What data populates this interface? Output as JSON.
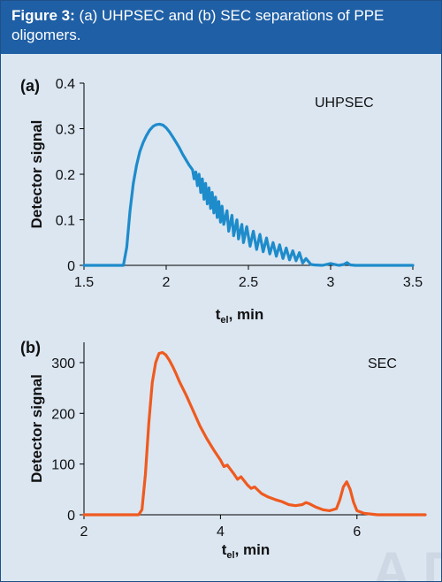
{
  "header": {
    "figure_label": "Figure 3:",
    "caption": "(a) UHPSEC and (b) SEC separations of PPE oligomers."
  },
  "colors": {
    "header_bg": "#1f5fa5",
    "panel_bg": "#dbe6f1",
    "series_a": "#1e8bcb",
    "series_b": "#ef5a1f"
  },
  "chart_data": [
    {
      "type": "line",
      "panel_label": "(a)",
      "series_name": "UHPSEC",
      "xlabel_main": "t",
      "xlabel_sub": "el",
      "xlabel_rest": ", min",
      "ylabel": "Detector signal",
      "xlim": [
        1.5,
        3.5
      ],
      "ylim": [
        0,
        0.4
      ],
      "xticks": [
        1.5,
        2,
        2.5,
        3,
        3.5
      ],
      "xtick_labels": [
        "1.5",
        "2",
        "2.5",
        "3",
        "3.5"
      ],
      "yticks": [
        0,
        0.1,
        0.2,
        0.3,
        0.4
      ],
      "ytick_labels": [
        "0",
        "0.1",
        "0.2",
        "0.3",
        "0.4"
      ],
      "x": [
        1.5,
        1.7,
        1.74,
        1.76,
        1.78,
        1.8,
        1.82,
        1.84,
        1.86,
        1.88,
        1.9,
        1.92,
        1.94,
        1.96,
        1.98,
        2.0,
        2.02,
        2.04,
        2.06,
        2.08,
        2.1,
        2.12,
        2.14,
        2.16,
        2.17,
        2.18,
        2.19,
        2.2,
        2.21,
        2.22,
        2.23,
        2.24,
        2.25,
        2.26,
        2.27,
        2.28,
        2.29,
        2.3,
        2.31,
        2.32,
        2.33,
        2.34,
        2.35,
        2.37,
        2.38,
        2.4,
        2.41,
        2.43,
        2.44,
        2.46,
        2.47,
        2.49,
        2.51,
        2.53,
        2.55,
        2.57,
        2.59,
        2.61,
        2.63,
        2.65,
        2.67,
        2.69,
        2.71,
        2.73,
        2.75,
        2.77,
        2.79,
        2.81,
        2.83,
        2.85,
        2.88,
        2.9,
        2.95,
        3.0,
        3.05,
        3.08,
        3.1,
        3.12,
        3.15,
        3.2,
        3.5
      ],
      "y": [
        0.0,
        0.0,
        0.0,
        0.04,
        0.12,
        0.18,
        0.22,
        0.25,
        0.27,
        0.285,
        0.297,
        0.305,
        0.309,
        0.31,
        0.308,
        0.302,
        0.293,
        0.282,
        0.27,
        0.258,
        0.244,
        0.232,
        0.22,
        0.21,
        0.19,
        0.205,
        0.175,
        0.2,
        0.16,
        0.19,
        0.145,
        0.18,
        0.135,
        0.17,
        0.125,
        0.16,
        0.115,
        0.15,
        0.105,
        0.14,
        0.095,
        0.13,
        0.09,
        0.12,
        0.075,
        0.11,
        0.065,
        0.1,
        0.058,
        0.09,
        0.05,
        0.085,
        0.042,
        0.075,
        0.035,
        0.068,
        0.03,
        0.06,
        0.025,
        0.05,
        0.02,
        0.045,
        0.015,
        0.038,
        0.012,
        0.032,
        0.01,
        0.028,
        0.005,
        0.015,
        0.002,
        0.001,
        0.0,
        0.004,
        0.0,
        0.002,
        0.006,
        0.001,
        0.0,
        0.0,
        0.0
      ]
    },
    {
      "type": "line",
      "panel_label": "(b)",
      "series_name": "SEC",
      "xlabel_main": "t",
      "xlabel_sub": "el",
      "xlabel_rest": ", min",
      "ylabel": "Detector signal",
      "xlim": [
        2,
        7
      ],
      "ylim": [
        0,
        340
      ],
      "xticks": [
        2,
        4,
        6
      ],
      "xtick_labels": [
        "2",
        "4",
        "6"
      ],
      "yticks": [
        0,
        100,
        200,
        300
      ],
      "ytick_labels": [
        "0",
        "100",
        "200",
        "300"
      ],
      "x": [
        2.0,
        2.8,
        2.85,
        2.9,
        2.95,
        3.0,
        3.05,
        3.1,
        3.15,
        3.2,
        3.25,
        3.3,
        3.35,
        3.4,
        3.5,
        3.6,
        3.7,
        3.8,
        3.9,
        4.0,
        4.05,
        4.1,
        4.2,
        4.25,
        4.3,
        4.4,
        4.45,
        4.5,
        4.6,
        4.7,
        4.8,
        4.9,
        5.0,
        5.1,
        5.2,
        5.25,
        5.3,
        5.4,
        5.5,
        5.6,
        5.7,
        5.75,
        5.8,
        5.85,
        5.9,
        5.95,
        6.0,
        6.1,
        6.3,
        7.0
      ],
      "y": [
        0,
        0,
        10,
        80,
        180,
        260,
        300,
        318,
        320,
        315,
        305,
        292,
        278,
        262,
        235,
        205,
        175,
        150,
        128,
        108,
        95,
        98,
        80,
        70,
        75,
        58,
        52,
        55,
        42,
        35,
        30,
        26,
        20,
        18,
        20,
        24,
        22,
        15,
        10,
        8,
        12,
        30,
        55,
        65,
        50,
        25,
        8,
        3,
        0,
        0
      ]
    }
  ],
  "watermark": "ADV"
}
